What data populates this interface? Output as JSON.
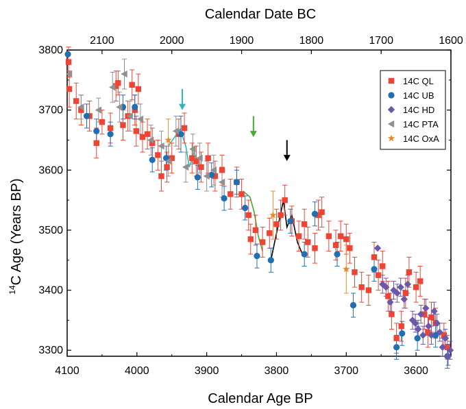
{
  "chart_data": {
    "type": "scatter",
    "title": "",
    "xlabel": "Calendar Age BP",
    "ylabel_prefix": "14",
    "ylabel_rest": "C Age (Years BP)",
    "x2label": "Calendar Date BC",
    "xlim": [
      4100,
      3550
    ],
    "ylim": [
      3290,
      3800
    ],
    "x2lim": [
      2150,
      1600
    ],
    "x_ticks": [
      4100,
      4000,
      3900,
      3800,
      3700,
      3600
    ],
    "x2_ticks": [
      2100,
      2000,
      1900,
      1800,
      1700,
      1600
    ],
    "y_ticks": [
      3300,
      3400,
      3500,
      3600,
      3700,
      3800
    ],
    "grid": false,
    "legend_position": "top-right",
    "series": [
      {
        "name": "14C QL",
        "marker": "square",
        "color": "#ee4433",
        "points": [
          [
            4098,
            3780,
            25
          ],
          [
            4097,
            3735,
            30
          ],
          [
            4087,
            3715,
            30
          ],
          [
            4080,
            3700,
            25
          ],
          [
            4068,
            3690,
            25
          ],
          [
            4058,
            3645,
            25
          ],
          [
            4050,
            3680,
            20
          ],
          [
            4038,
            3670,
            25
          ],
          [
            4030,
            3740,
            25
          ],
          [
            4027,
            3745,
            20
          ],
          [
            4020,
            3675,
            25
          ],
          [
            4013,
            3690,
            25
          ],
          [
            4007,
            3742,
            25
          ],
          [
            4003,
            3700,
            25
          ],
          [
            4001,
            3665,
            25
          ],
          [
            3998,
            3735,
            25
          ],
          [
            3992,
            3655,
            25
          ],
          [
            3985,
            3660,
            25
          ],
          [
            3978,
            3645,
            25
          ],
          [
            3970,
            3625,
            25
          ],
          [
            3965,
            3590,
            25
          ],
          [
            3957,
            3605,
            25
          ],
          [
            3950,
            3620,
            25
          ],
          [
            3940,
            3660,
            25
          ],
          [
            3932,
            3670,
            25
          ],
          [
            3921,
            3620,
            25
          ],
          [
            3915,
            3615,
            25
          ],
          [
            3908,
            3605,
            25
          ],
          [
            3898,
            3620,
            25
          ],
          [
            3888,
            3590,
            25
          ],
          [
            3878,
            3600,
            25
          ],
          [
            3866,
            3560,
            25
          ],
          [
            3857,
            3580,
            25
          ],
          [
            3850,
            3560,
            25
          ],
          [
            3840,
            3525,
            25
          ],
          [
            3837,
            3485,
            25
          ],
          [
            3830,
            3500,
            25
          ],
          [
            3820,
            3480,
            25
          ],
          [
            3810,
            3495,
            25
          ],
          [
            3800,
            3510,
            25
          ],
          [
            3794,
            3525,
            25
          ],
          [
            3788,
            3550,
            25
          ],
          [
            3778,
            3515,
            25
          ],
          [
            3768,
            3490,
            25
          ],
          [
            3760,
            3510,
            25
          ],
          [
            3755,
            3480,
            25
          ],
          [
            3745,
            3470,
            25
          ],
          [
            3740,
            3525,
            25
          ],
          [
            3735,
            3530,
            25
          ],
          [
            3725,
            3490,
            25
          ],
          [
            3715,
            3475,
            25
          ],
          [
            3708,
            3490,
            25
          ],
          [
            3700,
            3485,
            25
          ],
          [
            3695,
            3470,
            25
          ],
          [
            3688,
            3430,
            25
          ],
          [
            3678,
            3405,
            25
          ],
          [
            3668,
            3400,
            25
          ],
          [
            3660,
            3455,
            25
          ],
          [
            3654,
            3425,
            25
          ],
          [
            3648,
            3440,
            25
          ],
          [
            3640,
            3390,
            25
          ],
          [
            3635,
            3360,
            25
          ],
          [
            3628,
            3320,
            25
          ],
          [
            3621,
            3340,
            25
          ],
          [
            3615,
            3395,
            25
          ],
          [
            3610,
            3430,
            25
          ],
          [
            3600,
            3405,
            25
          ],
          [
            3594,
            3415,
            25
          ],
          [
            3588,
            3360,
            25
          ],
          [
            3583,
            3330,
            25
          ],
          [
            3578,
            3355,
            25
          ],
          [
            3572,
            3345,
            25
          ],
          [
            3560,
            3325,
            20
          ],
          [
            3555,
            3305,
            20
          ]
        ]
      },
      {
        "name": "14C UB",
        "marker": "circle",
        "color": "#1f6fb2",
        "points": [
          [
            4099,
            3793,
            0
          ],
          [
            4072,
            3690,
            20
          ],
          [
            4058,
            3665,
            20
          ],
          [
            4038,
            3660,
            20
          ],
          [
            4020,
            3705,
            20
          ],
          [
            4003,
            3705,
            20
          ],
          [
            3978,
            3617,
            20
          ],
          [
            3958,
            3620,
            20
          ],
          [
            3937,
            3660,
            30
          ],
          [
            3913,
            3588,
            20
          ],
          [
            3893,
            3592,
            20
          ],
          [
            3875,
            3553,
            20
          ],
          [
            3857,
            3580,
            20
          ],
          [
            3845,
            3537,
            20
          ],
          [
            3828,
            3457,
            20
          ],
          [
            3808,
            3450,
            20
          ],
          [
            3780,
            3515,
            20
          ],
          [
            3760,
            3460,
            20
          ],
          [
            3745,
            3527,
            20
          ],
          [
            3713,
            3460,
            20
          ],
          [
            3690,
            3375,
            20
          ],
          [
            3660,
            3435,
            20
          ],
          [
            3628,
            3305,
            20
          ],
          [
            3620,
            3328,
            20
          ],
          [
            3598,
            3320,
            20
          ],
          [
            3572,
            3325,
            20
          ],
          [
            3555,
            3290,
            20
          ]
        ]
      },
      {
        "name": "14C HD",
        "marker": "diamond",
        "color": "#6b58a8",
        "points": [
          [
            3655,
            3470,
            0
          ],
          [
            3648,
            3410,
            15
          ],
          [
            3643,
            3405,
            15
          ],
          [
            3637,
            3380,
            15
          ],
          [
            3632,
            3400,
            15
          ],
          [
            3627,
            3395,
            15
          ],
          [
            3622,
            3405,
            15
          ],
          [
            3617,
            3385,
            15
          ],
          [
            3612,
            3410,
            15
          ],
          [
            3605,
            3350,
            15
          ],
          [
            3601,
            3345,
            15
          ],
          [
            3597,
            3335,
            15
          ],
          [
            3593,
            3360,
            15
          ],
          [
            3590,
            3325,
            15
          ],
          [
            3586,
            3370,
            15
          ],
          [
            3582,
            3340,
            15
          ],
          [
            3578,
            3325,
            15
          ],
          [
            3574,
            3365,
            15
          ],
          [
            3570,
            3345,
            15
          ],
          [
            3566,
            3330,
            15
          ],
          [
            3562,
            3305,
            15
          ],
          [
            3558,
            3320,
            15
          ],
          [
            3554,
            3290,
            15
          ],
          [
            3551,
            3300,
            15
          ]
        ]
      },
      {
        "name": "14C PTA",
        "marker": "triangle-left",
        "color": "#909090",
        "points": [
          [
            4097,
            3760,
            0
          ],
          [
            4080,
            3705,
            20
          ],
          [
            4055,
            3700,
            20
          ],
          [
            4035,
            3738,
            25
          ],
          [
            4025,
            3705,
            25
          ],
          [
            4018,
            3760,
            25
          ],
          [
            4010,
            3690,
            25
          ],
          [
            3995,
            3685,
            25
          ],
          [
            3980,
            3650,
            25
          ],
          [
            3965,
            3640,
            25
          ],
          [
            3955,
            3615,
            25
          ],
          [
            3944,
            3665,
            25
          ],
          [
            3930,
            3605,
            25
          ],
          [
            3920,
            3635,
            25
          ],
          [
            3910,
            3620,
            25
          ],
          [
            3900,
            3590,
            25
          ],
          [
            3890,
            3600,
            25
          ],
          [
            3878,
            3580,
            25
          ]
        ]
      },
      {
        "name": "14C OxA",
        "marker": "star",
        "color": "#e88a2a",
        "points": [
          [
            3955,
            3650,
            35
          ],
          [
            3805,
            3525,
            40
          ],
          [
            3700,
            3435,
            40
          ]
        ]
      }
    ],
    "annotations": {
      "arrows": [
        {
          "color": "#30b8b8",
          "x": 3935,
          "y_top": 3735,
          "y_bottom": 3700
        },
        {
          "color": "#44aa33",
          "x": 3833,
          "y_top": 3690,
          "y_bottom": 3655
        },
        {
          "color": "#000000",
          "x": 3785,
          "y_top": 3650,
          "y_bottom": 3615
        }
      ],
      "paths": [
        {
          "color": "#30b8b8",
          "points": [
            [
              3955,
              3640
            ],
            [
              3938,
              3668
            ],
            [
              3930,
              3640
            ],
            [
              3925,
              3605
            ],
            [
              3918,
              3630
            ],
            [
              3910,
              3600
            ]
          ]
        },
        {
          "color": "#44aa33",
          "points": [
            [
              3848,
              3565
            ],
            [
              3838,
              3555
            ],
            [
              3832,
              3530
            ],
            [
              3826,
              3490
            ],
            [
              3820,
              3465
            ]
          ]
        },
        {
          "color": "#000000",
          "points": [
            [
              3808,
              3450
            ],
            [
              3790,
              3550
            ],
            [
              3785,
              3505
            ],
            [
              3778,
              3525
            ],
            [
              3770,
              3480
            ],
            [
              3762,
              3458
            ]
          ]
        }
      ]
    }
  }
}
